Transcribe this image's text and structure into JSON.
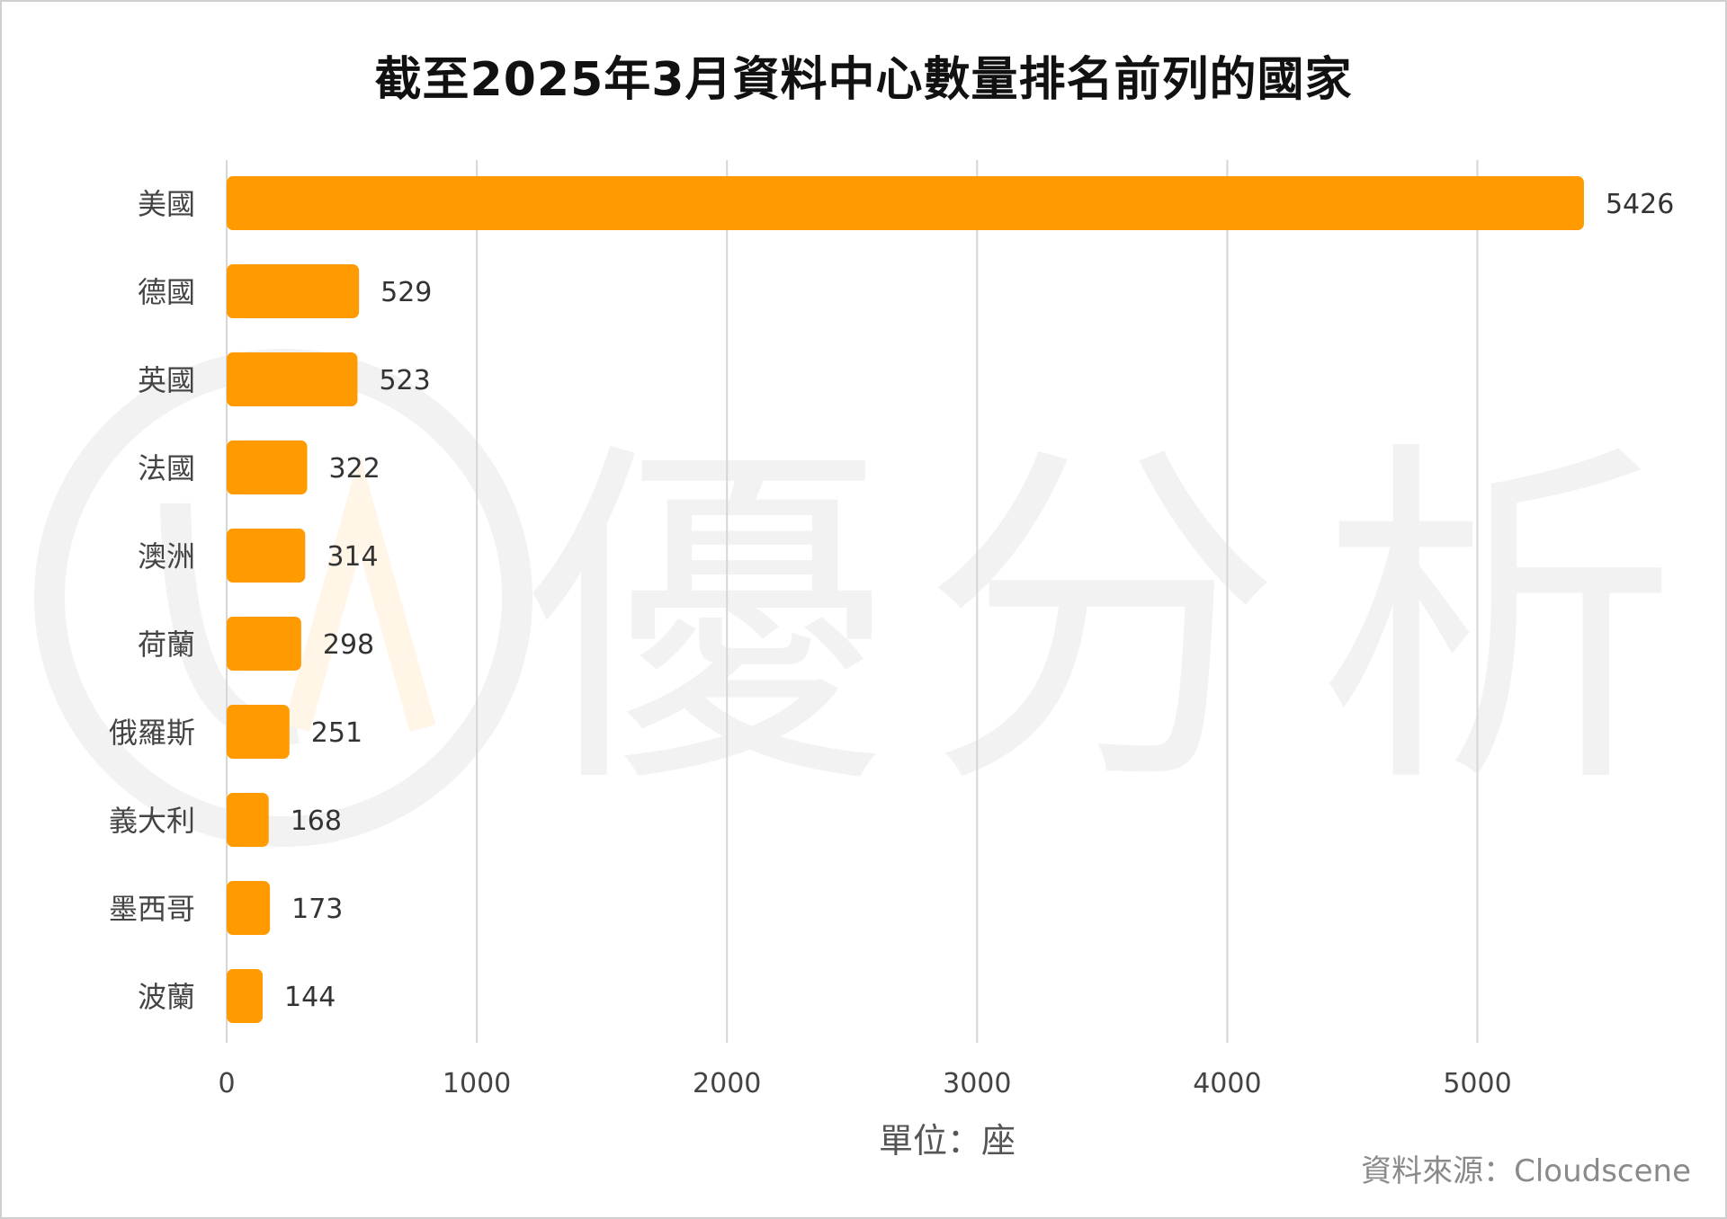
{
  "title": "截至2025年3月資料中心數量排名前列的國家",
  "source": "資料來源：Cloudscene",
  "watermark_text": "優分析",
  "chart_data": {
    "type": "bar",
    "orientation": "horizontal",
    "title": "截至2025年3月資料中心數量排名前列的國家",
    "xlabel": "單位：座",
    "ylabel": "",
    "categories": [
      "美國",
      "德國",
      "英國",
      "法國",
      "澳洲",
      "荷蘭",
      "俄羅斯",
      "義大利",
      "墨西哥",
      "波蘭"
    ],
    "values": [
      5426,
      529,
      523,
      322,
      314,
      298,
      251,
      168,
      173,
      144
    ],
    "xlim": [
      0,
      5500
    ],
    "xticks": [
      0,
      1000,
      2000,
      3000,
      4000,
      5000
    ],
    "grid": true,
    "bar_color": "#ff9a00",
    "grid_color": "#d6d6d6",
    "data_labels": true
  }
}
